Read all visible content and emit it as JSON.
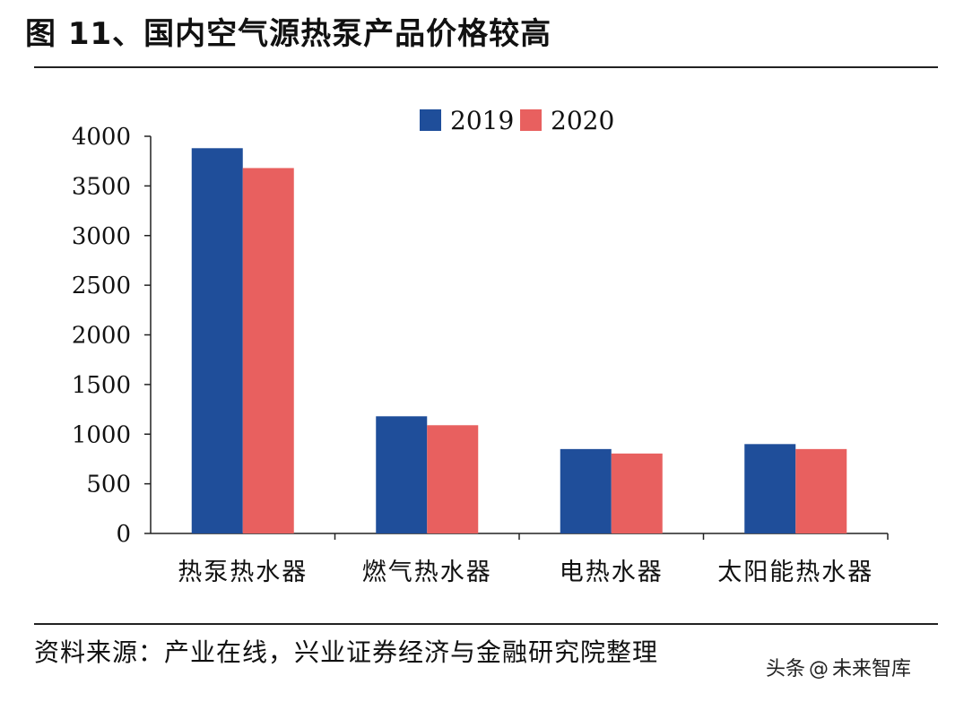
{
  "page": {
    "title": "图 11、国内空气源热泵产品价格较高",
    "source": "资料来源：产业在线，兴业证券经济与金融研究院整理",
    "watermark": {
      "prefix": "头条",
      "handle": "未来智库"
    }
  },
  "chart_data": {
    "type": "bar",
    "title": "",
    "xlabel": "",
    "ylabel": "",
    "categories": [
      "热泵热水器",
      "燃气热水器",
      "电热水器",
      "太阳能热水器"
    ],
    "series": [
      {
        "name": "2019",
        "color": "#1f4e9a",
        "values": [
          3880,
          1180,
          850,
          900
        ]
      },
      {
        "name": "2020",
        "color": "#e8605f",
        "values": [
          3680,
          1090,
          805,
          850
        ]
      }
    ],
    "ylim": [
      0,
      4000
    ],
    "yticks": [
      0,
      500,
      1000,
      1500,
      2000,
      2500,
      3000,
      3500,
      4000
    ],
    "grid": false,
    "legend": "top-center"
  }
}
